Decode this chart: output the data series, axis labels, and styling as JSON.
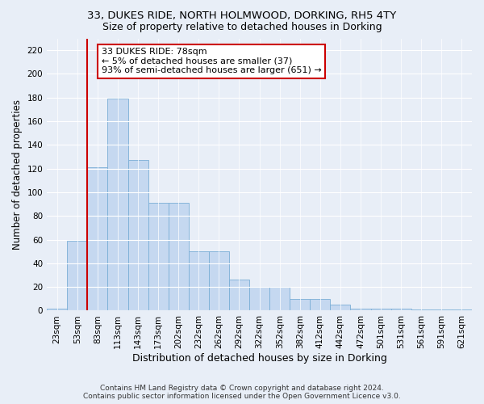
{
  "title_line1": "33, DUKES RIDE, NORTH HOLMWOOD, DORKING, RH5 4TY",
  "title_line2": "Size of property relative to detached houses in Dorking",
  "xlabel": "Distribution of detached houses by size in Dorking",
  "ylabel": "Number of detached properties",
  "bar_labels": [
    "23sqm",
    "53sqm",
    "83sqm",
    "113sqm",
    "143sqm",
    "173sqm",
    "202sqm",
    "232sqm",
    "262sqm",
    "292sqm",
    "322sqm",
    "352sqm",
    "382sqm",
    "412sqm",
    "442sqm",
    "472sqm",
    "501sqm",
    "531sqm",
    "561sqm",
    "591sqm",
    "621sqm"
  ],
  "bar_values": [
    2,
    59,
    121,
    179,
    127,
    91,
    91,
    50,
    50,
    26,
    20,
    20,
    10,
    10,
    5,
    2,
    2,
    2,
    1,
    1,
    1
  ],
  "bar_color": "#c5d8f0",
  "bar_edge_color": "#7aaed6",
  "vline_color": "#cc0000",
  "vline_x": 1.5,
  "annotation_text": "33 DUKES RIDE: 78sqm\n← 5% of detached houses are smaller (37)\n93% of semi-detached houses are larger (651) →",
  "annotation_box_edge_color": "#cc0000",
  "ylim": [
    0,
    230
  ],
  "yticks": [
    0,
    20,
    40,
    60,
    80,
    100,
    120,
    140,
    160,
    180,
    200,
    220
  ],
  "background_color": "#e8eef7",
  "plot_bg_color": "#e8eef7",
  "footer_line1": "Contains HM Land Registry data © Crown copyright and database right 2024.",
  "footer_line2": "Contains public sector information licensed under the Open Government Licence v3.0.",
  "title_fontsize": 9.5,
  "subtitle_fontsize": 9,
  "xlabel_fontsize": 9,
  "ylabel_fontsize": 8.5,
  "tick_fontsize": 7.5,
  "footer_fontsize": 6.5,
  "annotation_fontsize": 8
}
